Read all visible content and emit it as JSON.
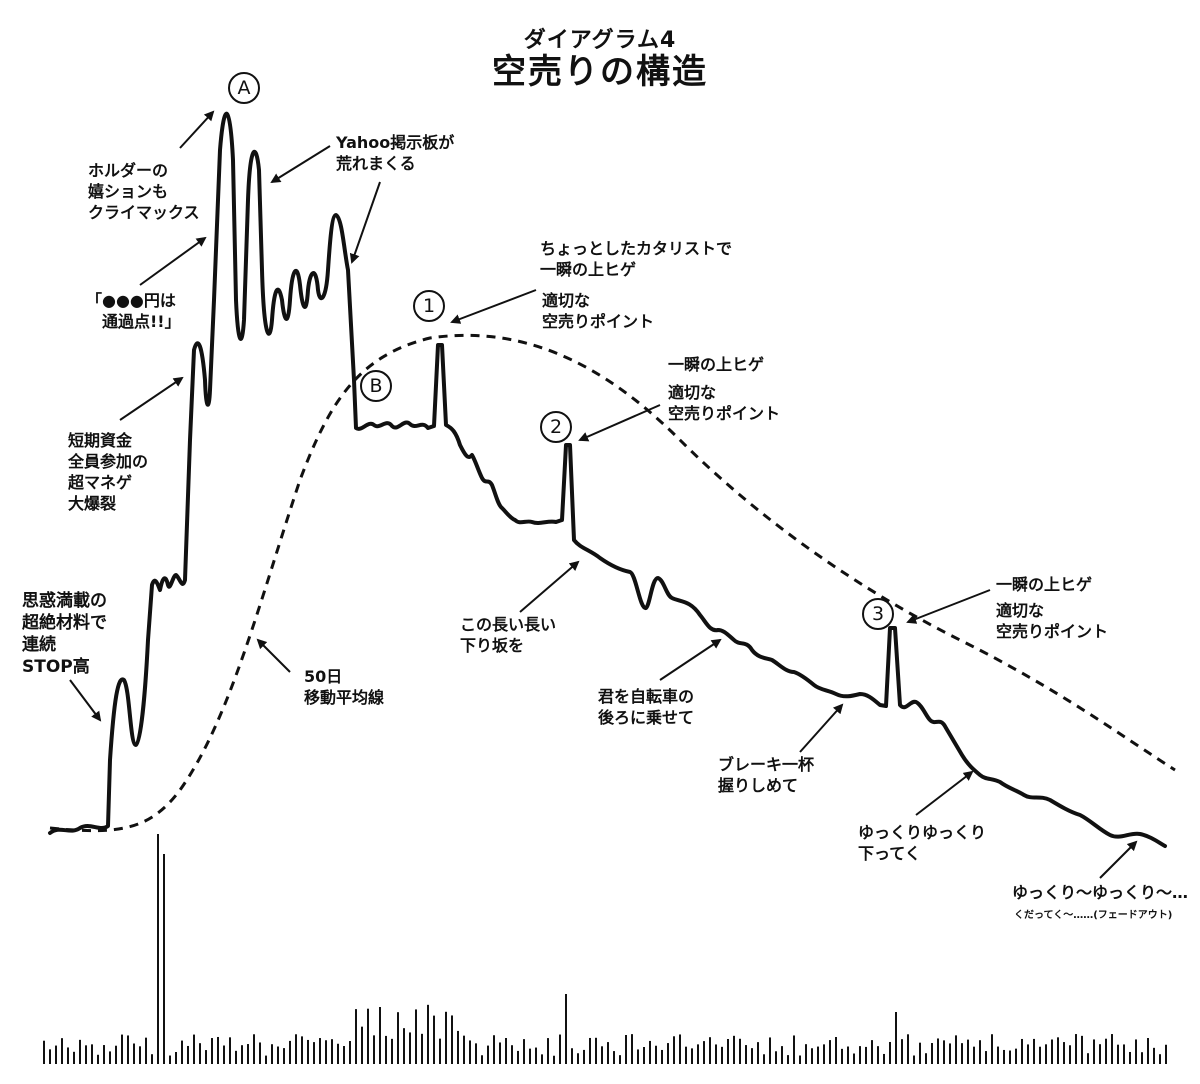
{
  "title": {
    "sub": "ダイアグラム4",
    "main": "空売りの構造"
  },
  "markers": {
    "A": "A",
    "B": "B",
    "p1": "1",
    "p2": "2",
    "p3": "3"
  },
  "labels": {
    "holder": "ホルダーの\n嬉ションも\nクライマックス",
    "yahoo": "Yahoo掲示板が\n荒れまくる",
    "yen": "「●●●円は\n　通過点!!」",
    "short_term": "短期資金\n全員参加の\n超マネゲ\n大爆裂",
    "stop_high": "思惑満載の\n超絶材料で\n連続\nSTOP高",
    "ma50": "50日\n移動平均線",
    "catalyst": "ちょっとしたカタリストで\n一瞬の上ヒゲ",
    "point1": "適切な\n空売りポイント",
    "wick2": "一瞬の上ヒゲ",
    "point2": "適切な\n空売りポイント",
    "slope": "この長い長い\n下り坂を",
    "bike": "君を自転車の\n後ろに乗せて",
    "brake": "ブレーキ一杯\n握りしめて",
    "wick3": "一瞬の上ヒゲ",
    "point3": "適切な\n空売りポイント",
    "slowly": "ゆっくりゆっくり\n下ってく",
    "fade_main": "ゆっくり〜ゆっくり〜…",
    "fade_sub": "くだってく〜……(フェードアウト)"
  },
  "colors": {
    "ink": "#111111",
    "background": "#ffffff"
  }
}
